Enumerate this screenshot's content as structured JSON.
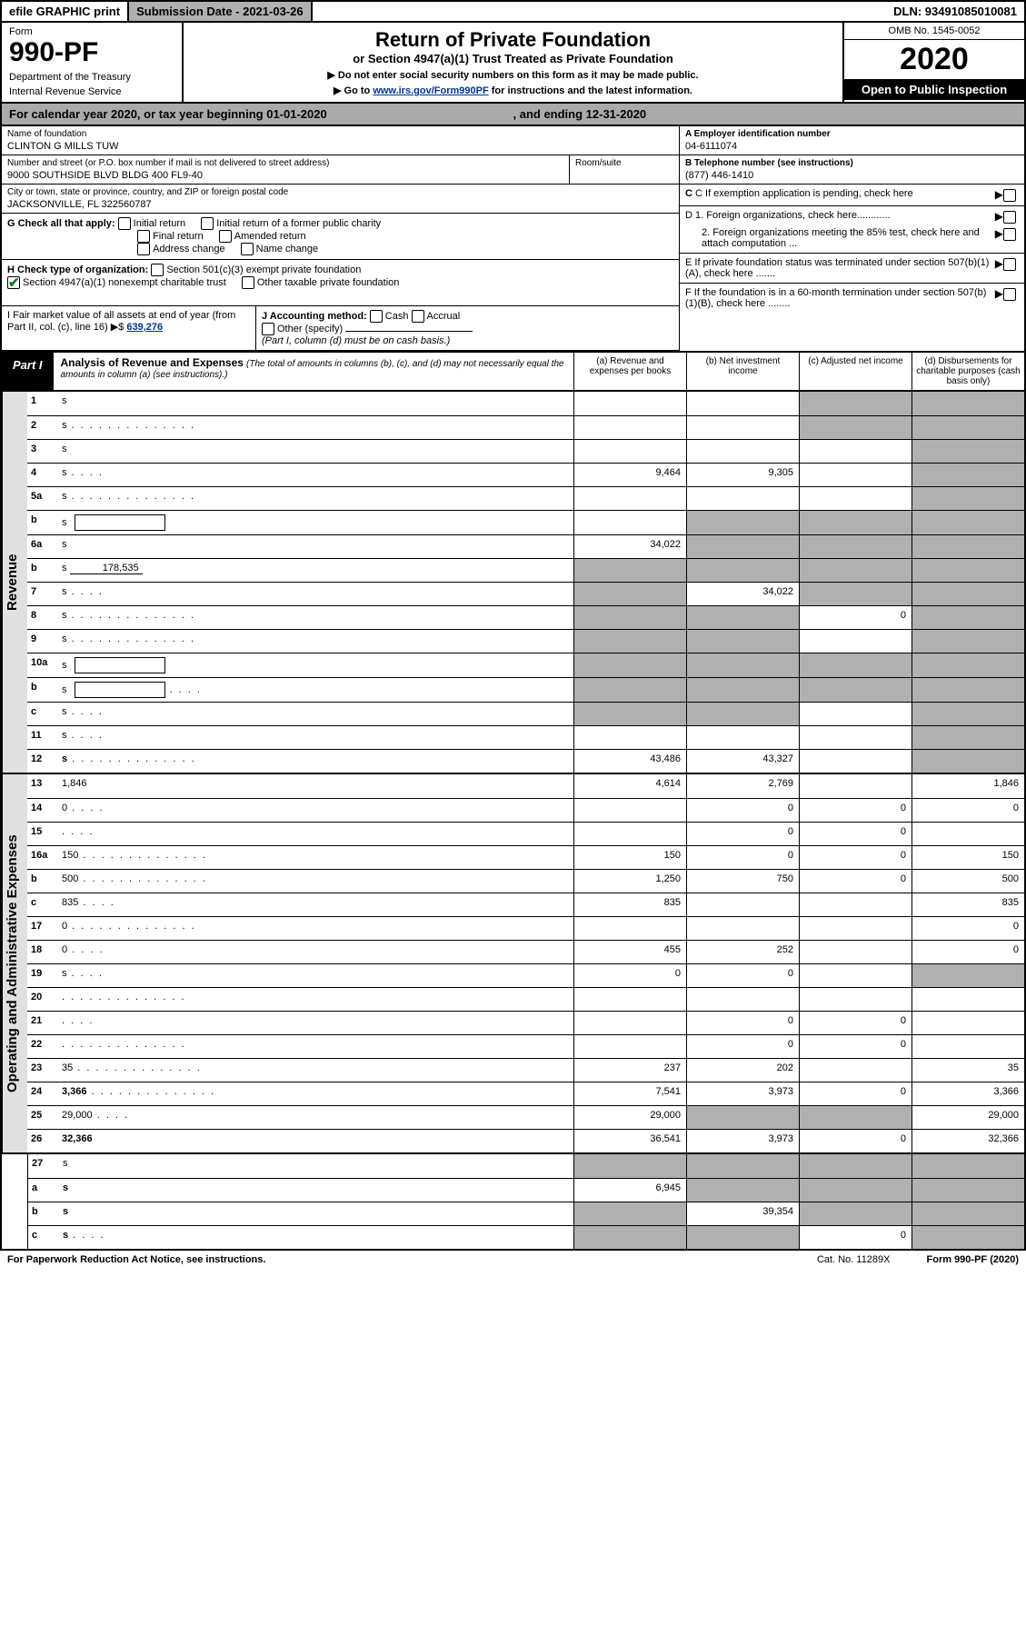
{
  "topbar": {
    "efile": "efile GRAPHIC print",
    "subdate_label": "Submission Date - 2021-03-26",
    "dln": "DLN: 93491085010081"
  },
  "header": {
    "form_label": "Form",
    "form_number": "990-PF",
    "dept": "Department of the Treasury",
    "irs": "Internal Revenue Service",
    "title": "Return of Private Foundation",
    "subtitle": "or Section 4947(a)(1) Trust Treated as Private Foundation",
    "note1": "▶ Do not enter social security numbers on this form as it may be made public.",
    "note2_pre": "▶ Go to ",
    "note2_link": "www.irs.gov/Form990PF",
    "note2_post": " for instructions and the latest information.",
    "omb": "OMB No. 1545-0052",
    "year": "2020",
    "inspection": "Open to Public Inspection"
  },
  "calendar": {
    "text": "For calendar year 2020, or tax year beginning 01-01-2020",
    "ending": ", and ending 12-31-2020"
  },
  "foundation": {
    "name_label": "Name of foundation",
    "name": "CLINTON G MILLS TUW",
    "addr_label": "Number and street (or P.O. box number if mail is not delivered to street address)",
    "addr": "9000 SOUTHSIDE BLVD BLDG 400 FL9-40",
    "room_label": "Room/suite",
    "city_label": "City or town, state or province, country, and ZIP or foreign postal code",
    "city": "JACKSONVILLE, FL  322560787",
    "ein_label": "A Employer identification number",
    "ein": "04-6111074",
    "phone_label": "B Telephone number (see instructions)",
    "phone": "(877) 446-1410",
    "c_label": "C If exemption application is pending, check here",
    "d1": "D 1. Foreign organizations, check here............",
    "d2": "2. Foreign organizations meeting the 85% test, check here and attach computation ...",
    "e_label": "E  If private foundation status was terminated under section 507(b)(1)(A), check here .......",
    "f_label": "F  If the foundation is in a 60-month termination under section 507(b)(1)(B), check here ........"
  },
  "g": {
    "label": "G Check all that apply:",
    "initial": "Initial return",
    "initial_former": "Initial return of a former public charity",
    "final": "Final return",
    "amended": "Amended return",
    "addr_change": "Address change",
    "name_change": "Name change"
  },
  "h": {
    "label": "H Check type of organization:",
    "s501": "Section 501(c)(3) exempt private foundation",
    "s4947": "Section 4947(a)(1) nonexempt charitable trust",
    "other": "Other taxable private foundation"
  },
  "i": {
    "label": "I Fair market value of all assets at end of year (from Part II, col. (c), line 16) ▶$",
    "value": "639,276"
  },
  "j": {
    "label": "J Accounting method:",
    "cash": "Cash",
    "accrual": "Accrual",
    "other": "Other (specify)",
    "note": "(Part I, column (d) must be on cash basis.)"
  },
  "part1": {
    "label": "Part I",
    "title": "Analysis of Revenue and Expenses",
    "sub": "(The total of amounts in columns (b), (c), and (d) may not necessarily equal the amounts in column (a) (see instructions).)",
    "cols": {
      "a": "(a)   Revenue and expenses per books",
      "b": "(b)  Net investment income",
      "c": "(c)  Adjusted net income",
      "d": "(d)  Disbursements for charitable purposes (cash basis only)"
    }
  },
  "revenue_label": "Revenue",
  "expenses_label": "Operating and Administrative Expenses",
  "rows": [
    {
      "n": "1",
      "d": "s",
      "a": "",
      "b": "",
      "c": "s"
    },
    {
      "n": "2",
      "d": "s",
      "a": "",
      "b": "",
      "c": "s",
      "dots": true
    },
    {
      "n": "3",
      "d": "s",
      "a": "",
      "b": "",
      "c": ""
    },
    {
      "n": "4",
      "d": "s",
      "a": "9,464",
      "b": "9,305",
      "c": "",
      "dots": "short"
    },
    {
      "n": "5a",
      "d": "s",
      "a": "",
      "b": "",
      "c": "",
      "dots": true
    },
    {
      "n": "b",
      "d": "s",
      "a": "",
      "b": "s",
      "c": "s",
      "inline": true
    },
    {
      "n": "6a",
      "d": "s",
      "a": "34,022",
      "b": "s",
      "c": "s"
    },
    {
      "n": "b",
      "d": "s",
      "a": "s",
      "b": "s",
      "c": "s",
      "under": "178,535"
    },
    {
      "n": "7",
      "d": "s",
      "a": "s",
      "b": "34,022",
      "c": "s",
      "dots": "short"
    },
    {
      "n": "8",
      "d": "s",
      "a": "s",
      "b": "s",
      "c": "0",
      "dots": true
    },
    {
      "n": "9",
      "d": "s",
      "a": "s",
      "b": "s",
      "c": "",
      "dots": true
    },
    {
      "n": "10a",
      "d": "s",
      "a": "s",
      "b": "s",
      "c": "s",
      "inline": true
    },
    {
      "n": "b",
      "d": "s",
      "a": "s",
      "b": "s",
      "c": "s",
      "inline": true,
      "dots": "short"
    },
    {
      "n": "c",
      "d": "s",
      "a": "s",
      "b": "s",
      "c": "",
      "dots": "short"
    },
    {
      "n": "11",
      "d": "s",
      "a": "",
      "b": "",
      "c": "",
      "dots": "short"
    },
    {
      "n": "12",
      "d": "s",
      "a": "43,486",
      "b": "43,327",
      "c": "",
      "bold": true,
      "dots": true
    }
  ],
  "exp_rows": [
    {
      "n": "13",
      "d": "1,846",
      "a": "4,614",
      "b": "2,769",
      "c": ""
    },
    {
      "n": "14",
      "d": "0",
      "a": "",
      "b": "0",
      "c": "0",
      "dots": "short"
    },
    {
      "n": "15",
      "d": "",
      "a": "",
      "b": "0",
      "c": "0",
      "dots": "short"
    },
    {
      "n": "16a",
      "d": "150",
      "a": "150",
      "b": "0",
      "c": "0",
      "dots": true
    },
    {
      "n": "b",
      "d": "500",
      "a": "1,250",
      "b": "750",
      "c": "0",
      "dots": true
    },
    {
      "n": "c",
      "d": "835",
      "a": "835",
      "b": "",
      "c": "",
      "dots": "short"
    },
    {
      "n": "17",
      "d": "0",
      "a": "",
      "b": "",
      "c": "",
      "dots": true
    },
    {
      "n": "18",
      "d": "0",
      "a": "455",
      "b": "252",
      "c": "",
      "dots": "short"
    },
    {
      "n": "19",
      "d": "s",
      "a": "0",
      "b": "0",
      "c": "",
      "dots": "short"
    },
    {
      "n": "20",
      "d": "",
      "a": "",
      "b": "",
      "c": "",
      "dots": true
    },
    {
      "n": "21",
      "d": "",
      "a": "",
      "b": "0",
      "c": "0",
      "dots": "short"
    },
    {
      "n": "22",
      "d": "",
      "a": "",
      "b": "0",
      "c": "0",
      "dots": true
    },
    {
      "n": "23",
      "d": "35",
      "a": "237",
      "b": "202",
      "c": "",
      "dots": true
    },
    {
      "n": "24",
      "d": "3,366",
      "a": "7,541",
      "b": "3,973",
      "c": "0",
      "bold": true,
      "dots": true
    },
    {
      "n": "25",
      "d": "29,000",
      "a": "29,000",
      "b": "s",
      "c": "s",
      "dots": "short"
    },
    {
      "n": "26",
      "d": "32,366",
      "a": "36,541",
      "b": "3,973",
      "c": "0",
      "bold": true
    }
  ],
  "sub_rows": [
    {
      "n": "27",
      "d": "s",
      "a": "s",
      "b": "s",
      "c": "s"
    },
    {
      "n": "a",
      "d": "s",
      "a": "6,945",
      "b": "s",
      "c": "s",
      "bold": true
    },
    {
      "n": "b",
      "d": "s",
      "a": "s",
      "b": "39,354",
      "c": "s",
      "bold": true
    },
    {
      "n": "c",
      "d": "s",
      "a": "s",
      "b": "s",
      "c": "0",
      "bold": true,
      "dots": "short"
    }
  ],
  "footer": {
    "notice": "For Paperwork Reduction Act Notice, see instructions.",
    "cat": "Cat. No. 11289X",
    "form": "Form 990-PF (2020)"
  }
}
